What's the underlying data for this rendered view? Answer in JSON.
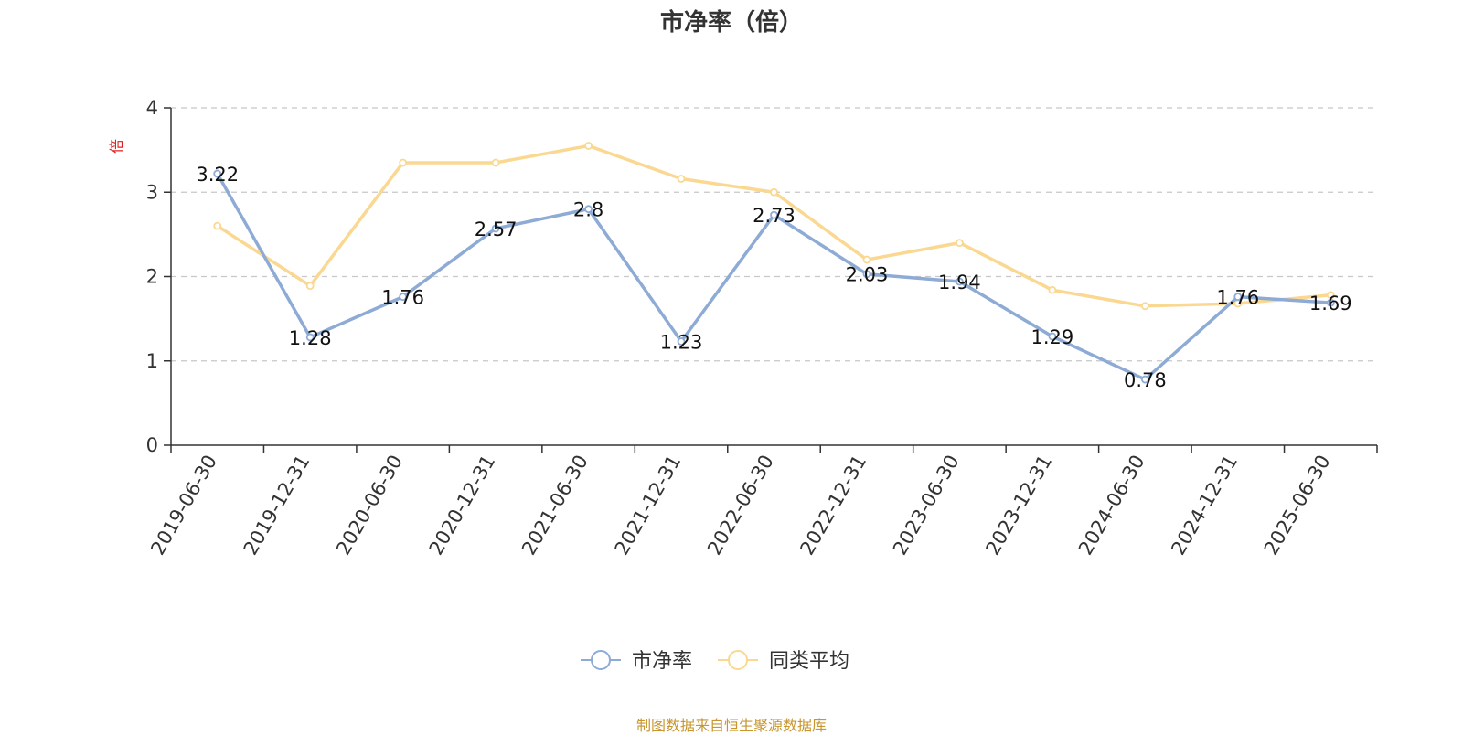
{
  "footer": "制图数据来自恒生聚源数据库",
  "chart_data": {
    "type": "line",
    "title": "市净率（倍）",
    "ylabel": "倍",
    "xlabel": "",
    "categories": [
      "2019-06-30",
      "2019-12-31",
      "2020-06-30",
      "2020-12-31",
      "2021-06-30",
      "2021-12-31",
      "2022-06-30",
      "2022-12-31",
      "2023-06-30",
      "2023-12-31",
      "2024-06-30",
      "2024-12-31",
      "2025-06-30"
    ],
    "ylim": [
      0,
      4
    ],
    "yticks": [
      0,
      1,
      2,
      3,
      4
    ],
    "grid": true,
    "legend_position": "bottom-center",
    "series": [
      {
        "name": "市净率",
        "color": "#8eabd6",
        "show_labels": true,
        "values": [
          3.22,
          1.28,
          1.76,
          2.57,
          2.8,
          1.23,
          2.73,
          2.03,
          1.94,
          1.29,
          0.78,
          1.76,
          1.69
        ]
      },
      {
        "name": "同类平均",
        "color": "#fad891",
        "show_labels": false,
        "values": [
          2.6,
          1.89,
          3.35,
          3.35,
          3.55,
          3.16,
          3.0,
          2.2,
          2.4,
          1.84,
          1.65,
          1.68,
          1.78
        ]
      }
    ]
  }
}
